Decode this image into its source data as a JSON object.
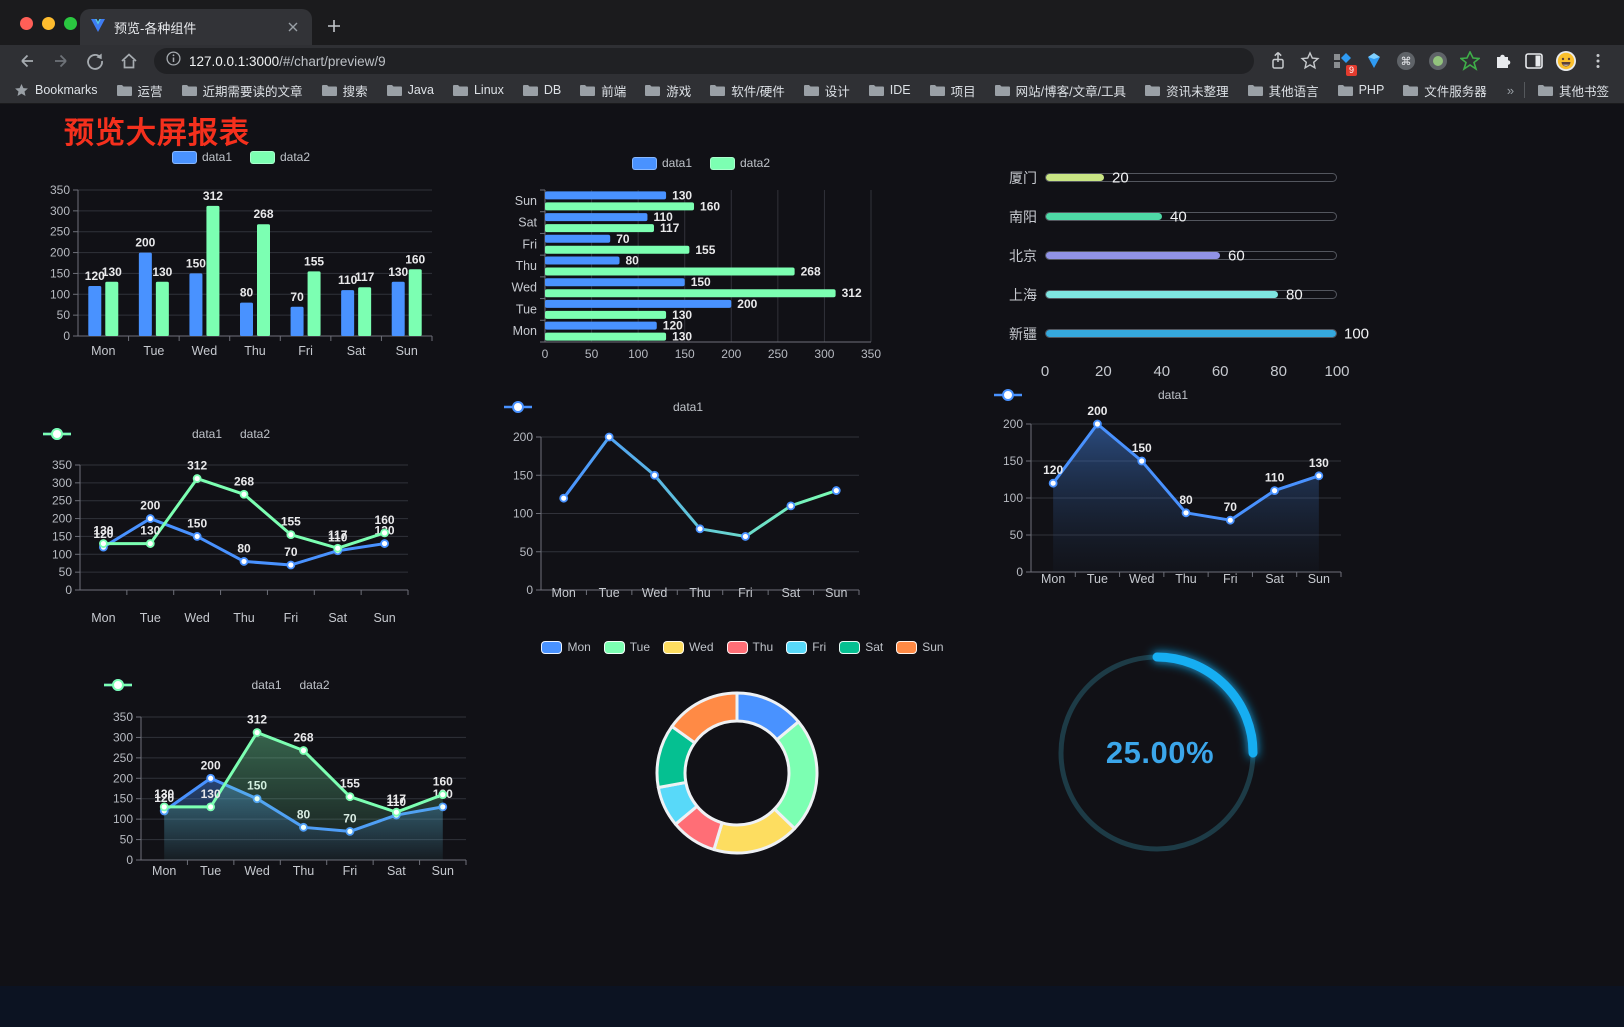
{
  "browser": {
    "tab": {
      "title": "预览-各种组件"
    },
    "url_host": "127.0.0.1:3000",
    "url_path": "/#/chart/preview/9",
    "extension_badge": "9",
    "bookmarks_bar": {
      "star_label": "Bookmarks",
      "folders": [
        "运营",
        "近期需要读的文章",
        "搜索",
        "Java",
        "Linux",
        "DB",
        "前端",
        "游戏",
        "软件/硬件",
        "设计",
        "IDE",
        "项目",
        "网站/博客/文章/工具",
        "资讯未整理",
        "其他语言",
        "PHP",
        "文件服务器"
      ],
      "overflow": "»",
      "other": "其他书签"
    }
  },
  "page": {
    "title": "预览大屏报表"
  },
  "chart_data": [
    {
      "type": "bar",
      "orientation": "vertical",
      "legend": "top",
      "grid": true,
      "value_labels": true,
      "categories": [
        "Mon",
        "Tue",
        "Wed",
        "Thu",
        "Fri",
        "Sat",
        "Sun"
      ],
      "series": [
        {
          "name": "data1",
          "color": "#4992ff",
          "values": [
            120,
            200,
            150,
            80,
            70,
            110,
            130
          ]
        },
        {
          "name": "data2",
          "color": "#7cffb2",
          "values": [
            130,
            130,
            312,
            268,
            155,
            117,
            160
          ]
        }
      ],
      "ylim": [
        0,
        350
      ],
      "ytick": 50
    },
    {
      "type": "bar",
      "orientation": "horizontal",
      "legend": "top",
      "grid": true,
      "value_labels": true,
      "categories": [
        "Mon",
        "Tue",
        "Wed",
        "Thu",
        "Fri",
        "Sat",
        "Sun"
      ],
      "categories_display_order": "bottom-to-top",
      "series": [
        {
          "name": "data1",
          "color": "#4992ff",
          "values": [
            120,
            200,
            150,
            80,
            70,
            110,
            130
          ]
        },
        {
          "name": "data2",
          "color": "#7cffb2",
          "values": [
            130,
            130,
            312,
            268,
            155,
            117,
            160
          ]
        }
      ],
      "xlim": [
        0,
        350
      ],
      "xtick": 50
    },
    {
      "type": "progress",
      "categories": [
        "厦门",
        "南阳",
        "北京",
        "上海",
        "新疆"
      ],
      "values": [
        20,
        40,
        60,
        80,
        100
      ],
      "colors": [
        "#c9e584",
        "#4ed9a6",
        "#9193e6",
        "#7fe5e1",
        "#35a8dd"
      ],
      "xlim": [
        0,
        100
      ],
      "xticks": [
        0,
        20,
        40,
        60,
        80,
        100
      ]
    },
    {
      "type": "line",
      "legend": "top",
      "grid": true,
      "value_labels": true,
      "categories": [
        "Mon",
        "Tue",
        "Wed",
        "Thu",
        "Fri",
        "Sat",
        "Sun"
      ],
      "series": [
        {
          "name": "data1",
          "color": "#4992ff",
          "values": [
            120,
            200,
            150,
            80,
            70,
            110,
            130
          ]
        },
        {
          "name": "data2",
          "color": "#7cffb2",
          "values": [
            130,
            130,
            312,
            268,
            155,
            117,
            160
          ]
        }
      ],
      "ylim": [
        0,
        350
      ],
      "ytick": 50
    },
    {
      "type": "line",
      "legend": "top",
      "grid": true,
      "value_labels": false,
      "categories": [
        "Mon",
        "Tue",
        "Wed",
        "Thu",
        "Fri",
        "Sat",
        "Sun"
      ],
      "series": [
        {
          "name": "data1",
          "gradient": [
            "#4992ff",
            "#7cffb2"
          ],
          "values": [
            120,
            200,
            150,
            80,
            70,
            110,
            130
          ]
        }
      ],
      "ylim": [
        0,
        200
      ],
      "ytick": 50
    },
    {
      "type": "line",
      "legend": "top",
      "grid": true,
      "value_labels": true,
      "categories": [
        "Mon",
        "Tue",
        "Wed",
        "Thu",
        "Fri",
        "Sat",
        "Sun"
      ],
      "series": [
        {
          "name": "data1",
          "color": "#4992ff",
          "values": [
            120,
            200,
            150,
            80,
            70,
            110,
            130
          ],
          "area": [
            "rgba(73,146,255,0.45)",
            "rgba(40,70,110,0.05)"
          ]
        }
      ],
      "ylim": [
        0,
        200
      ],
      "ytick": 50
    },
    {
      "type": "line",
      "legend": "top",
      "grid": true,
      "value_labels": true,
      "categories": [
        "Mon",
        "Tue",
        "Wed",
        "Thu",
        "Fri",
        "Sat",
        "Sun"
      ],
      "series": [
        {
          "name": "data1",
          "color": "#4992ff",
          "values": [
            120,
            200,
            150,
            80,
            70,
            110,
            130
          ],
          "area": [
            "rgba(73,146,255,0.40)",
            "rgba(73,146,255,0.03)"
          ]
        },
        {
          "name": "data2",
          "color": "#7cffb2",
          "values": [
            130,
            130,
            312,
            268,
            155,
            117,
            160
          ],
          "area": [
            "rgba(124,255,178,0.35)",
            "rgba(124,255,178,0.03)"
          ]
        }
      ],
      "ylim": [
        0,
        350
      ],
      "ytick": 50
    },
    {
      "type": "pie",
      "legend": "top",
      "donut": true,
      "categories": [
        "Mon",
        "Tue",
        "Wed",
        "Thu",
        "Fri",
        "Sat",
        "Sun"
      ],
      "values": [
        120,
        200,
        150,
        80,
        70,
        110,
        130
      ],
      "colors": [
        "#4992ff",
        "#7cffb2",
        "#fddd60",
        "#ff6e76",
        "#58d9f9",
        "#05c091",
        "#ff8a45"
      ]
    },
    {
      "type": "gauge",
      "value": 25,
      "max": 100,
      "label": "25.00%",
      "track_color": "#1d3b46",
      "progress_color": "#17aef2",
      "text_color": "#3ba6ea"
    }
  ]
}
